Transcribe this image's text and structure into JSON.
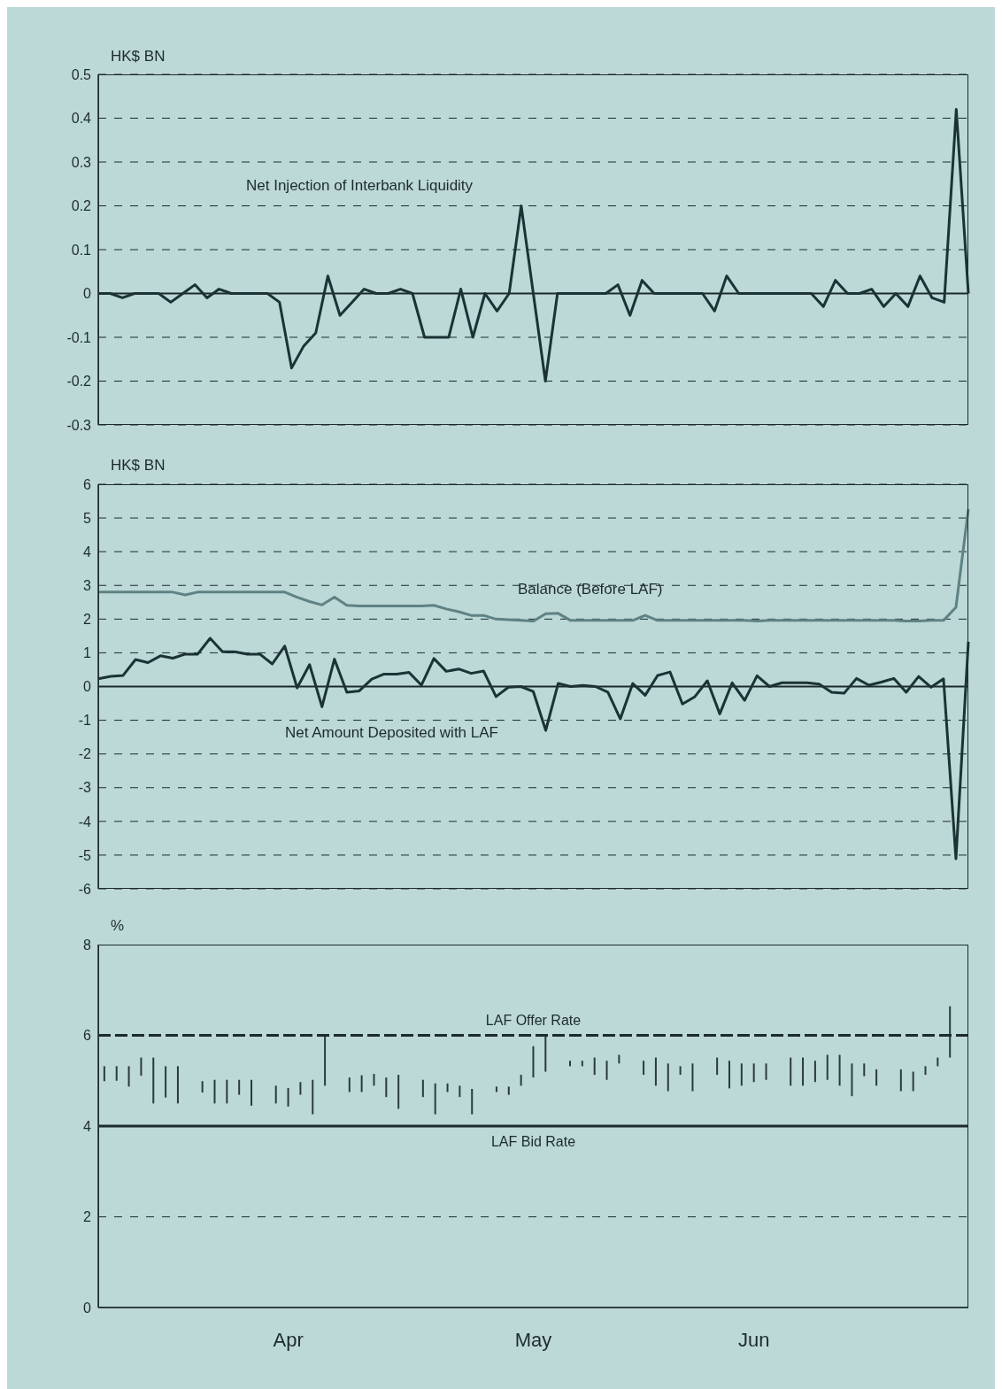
{
  "chart_data": [
    {
      "type": "line",
      "ylabel": "HK$ BN",
      "tick_labels": "y",
      "grid": "y",
      "ylim": [
        -0.3,
        0.5
      ],
      "yticks": [
        -0.3,
        -0.2,
        -0.1,
        0,
        0.1,
        0.2,
        0.3,
        0.4,
        0.5
      ],
      "categories": [
        null,
        null,
        null,
        null,
        null,
        null,
        null,
        null,
        null,
        null,
        null,
        null,
        null,
        null,
        null,
        null,
        null,
        null,
        null,
        null,
        null,
        null,
        null,
        null,
        null,
        null,
        null,
        null,
        null,
        null,
        null,
        null,
        null,
        null,
        null,
        null,
        null,
        null,
        null,
        null,
        null,
        null,
        null,
        null,
        null,
        null,
        null,
        null,
        null,
        null,
        null,
        null,
        null,
        null,
        null,
        null,
        null,
        null,
        null,
        null,
        null,
        null,
        null,
        null,
        null,
        null,
        null,
        null,
        null,
        null,
        null,
        null,
        null
      ],
      "series": [
        {
          "name": "Net Injection of Interbank Liquidity",
          "color": "#1c3335",
          "values": [
            0,
            0,
            -0.01,
            0,
            0,
            0,
            -0.02,
            0,
            0.02,
            -0.01,
            0.01,
            0,
            0,
            0,
            0,
            -0.02,
            -0.17,
            -0.12,
            -0.09,
            0.04,
            -0.05,
            -0.02,
            0.01,
            0,
            0,
            0.01,
            0,
            -0.1,
            -0.1,
            -0.1,
            0.01,
            -0.1,
            0,
            -0.04,
            0,
            0.2,
            0,
            -0.2,
            0,
            0,
            0,
            0,
            0,
            0.02,
            -0.05,
            0.03,
            0,
            0,
            0,
            0,
            0,
            -0.04,
            0.04,
            0,
            0,
            0,
            0,
            0,
            0,
            0,
            -0.03,
            0.03,
            0,
            0,
            0.01,
            -0.03,
            0,
            -0.03,
            0.04,
            -0.01,
            -0.02,
            0.42,
            0
          ]
        }
      ],
      "ref_lines": [
        {
          "axis": "y",
          "value": 0,
          "line_style": "solid",
          "color": "#1c2b2c"
        }
      ]
    },
    {
      "type": "line",
      "ylabel": "HK$ BN",
      "tick_labels": "y",
      "grid": "y",
      "ylim": [
        -6,
        6
      ],
      "yticks": [
        -6,
        -5,
        -4,
        -3,
        -2,
        -1,
        0,
        1,
        2,
        3,
        4,
        5,
        6
      ],
      "categories": [
        null,
        null,
        null,
        null,
        null,
        null,
        null,
        null,
        null,
        null,
        null,
        null,
        null,
        null,
        null,
        null,
        null,
        null,
        null,
        null,
        null,
        null,
        null,
        null,
        null,
        null,
        null,
        null,
        null,
        null,
        null,
        null,
        null,
        null,
        null,
        null,
        null,
        null,
        null,
        null,
        null,
        null,
        null,
        null,
        null,
        null,
        null,
        null,
        null,
        null,
        null,
        null,
        null,
        null,
        null,
        null,
        null,
        null,
        null,
        null,
        null,
        null,
        null,
        null,
        null,
        null,
        null,
        null,
        null,
        null,
        null
      ],
      "series": [
        {
          "name": "Balance (Before LAF)",
          "color": "#5f8284",
          "values": [
            2.8,
            2.8,
            2.8,
            2.8,
            2.8,
            2.8,
            2.8,
            2.72,
            2.8,
            2.8,
            2.8,
            2.8,
            2.8,
            2.8,
            2.8,
            2.8,
            2.65,
            2.52,
            2.42,
            2.65,
            2.41,
            2.39,
            2.39,
            2.39,
            2.39,
            2.39,
            2.39,
            2.41,
            2.3,
            2.22,
            2.11,
            2.11,
            2.0,
            1.98,
            1.96,
            1.94,
            2.16,
            2.17,
            1.96,
            1.96,
            1.96,
            1.96,
            1.96,
            1.96,
            2.11,
            1.96,
            1.96,
            1.96,
            1.96,
            1.96,
            1.96,
            1.96,
            1.96,
            1.94,
            1.96,
            1.96,
            1.96,
            1.96,
            1.96,
            1.96,
            1.96,
            1.96,
            1.96,
            1.96,
            1.96,
            1.94,
            1.94,
            1.96,
            1.96,
            2.35,
            5.26
          ]
        },
        {
          "name": "Net Amount Deposited with LAF",
          "color": "#1c3335",
          "values": [
            0.23,
            0.3,
            0.33,
            0.8,
            0.71,
            0.91,
            0.84,
            0.96,
            0.96,
            1.43,
            1.03,
            1.03,
            0.96,
            0.96,
            0.67,
            1.2,
            -0.04,
            0.65,
            -0.6,
            0.81,
            -0.17,
            -0.13,
            0.22,
            0.37,
            0.37,
            0.42,
            0.04,
            0.83,
            0.45,
            0.52,
            0.39,
            0.46,
            -0.3,
            -0.02,
            0,
            -0.15,
            -1.3,
            0.09,
            0,
            0.03,
            0,
            -0.17,
            -0.96,
            0.09,
            -0.26,
            0.33,
            0.43,
            -0.52,
            -0.3,
            0.17,
            -0.81,
            0.11,
            -0.41,
            0.32,
            0,
            0.11,
            0.11,
            0.11,
            0.07,
            -0.17,
            -0.2,
            0.24,
            0.04,
            0.13,
            0.24,
            -0.17,
            0.3,
            -0.02,
            0.23,
            -5.11,
            1.33
          ]
        }
      ],
      "ref_lines": [
        {
          "axis": "y",
          "value": 0,
          "line_style": "solid",
          "color": "#1c2b2c"
        }
      ]
    },
    {
      "type": "bar",
      "ylabel": "%",
      "ylim": [
        0,
        8
      ],
      "yticks": [
        0,
        2,
        4,
        6,
        8
      ],
      "color": "#2b3b3c",
      "categories": [
        null,
        null,
        null,
        null,
        null,
        null,
        null,
        null,
        null,
        null,
        null,
        null,
        null,
        null,
        null,
        "Apr",
        null,
        null,
        null,
        null,
        null,
        null,
        null,
        null,
        null,
        null,
        null,
        null,
        null,
        null,
        null,
        null,
        null,
        null,
        null,
        "May",
        null,
        null,
        null,
        null,
        null,
        null,
        null,
        null,
        null,
        null,
        null,
        null,
        null,
        null,
        null,
        null,
        null,
        "Jun",
        null,
        null,
        null,
        null,
        null,
        null,
        null,
        null,
        null,
        null,
        null,
        null,
        null,
        null,
        null,
        null,
        null
      ],
      "base": [
        4.99,
        5.0,
        4.87,
        5.11,
        4.5,
        4.63,
        4.5,
        null,
        4.74,
        4.5,
        4.5,
        4.69,
        4.45,
        null,
        4.5,
        4.43,
        4.69,
        4.26,
        4.89,
        null,
        4.75,
        4.75,
        4.89,
        4.64,
        4.38,
        null,
        4.64,
        4.26,
        4.75,
        4.64,
        4.26,
        null,
        4.75,
        4.69,
        4.89,
        5.07,
        5.2,
        null,
        5.32,
        5.32,
        5.13,
        5.02,
        5.38,
        null,
        5.13,
        4.89,
        4.77,
        5.13,
        4.77,
        null,
        5.13,
        4.83,
        4.89,
        4.97,
        5.02,
        null,
        4.89,
        4.89,
        4.97,
        5.02,
        4.89,
        4.66,
        5.1,
        4.89,
        null,
        4.77,
        4.77,
        5.13,
        5.32,
        5.51,
        null
      ],
      "values": [
        0.33,
        0.32,
        0.45,
        0.4,
        1.01,
        0.69,
        0.82,
        null,
        0.25,
        0.52,
        0.52,
        0.33,
        0.57,
        null,
        0.39,
        0.41,
        0.28,
        0.76,
        1.11,
        null,
        0.32,
        0.37,
        0.26,
        0.43,
        0.75,
        null,
        0.38,
        0.68,
        0.19,
        0.25,
        0.56,
        null,
        0.12,
        0.18,
        0.24,
        0.69,
        0.8,
        null,
        0.12,
        0.12,
        0.38,
        0.42,
        0.19,
        null,
        0.31,
        0.62,
        0.61,
        0.19,
        0.61,
        null,
        0.38,
        0.61,
        0.49,
        0.41,
        0.36,
        null,
        0.62,
        0.62,
        0.47,
        0.55,
        0.68,
        0.72,
        0.28,
        0.36,
        null,
        0.48,
        0.43,
        0.19,
        0.19,
        1.13,
        null
      ],
      "ref_lines": [
        {
          "axis": "y",
          "value": 6,
          "label": "LAF Offer Rate",
          "line_style": "dashed",
          "color": "#1c2b2c"
        },
        {
          "axis": "y",
          "value": 4,
          "label": "LAF Bid Rate",
          "line_style": "solid",
          "color": "#1c2b2c"
        },
        {
          "axis": "y",
          "value": 2,
          "line_style": "dashed",
          "color": "#1c2b2c"
        }
      ]
    }
  ]
}
